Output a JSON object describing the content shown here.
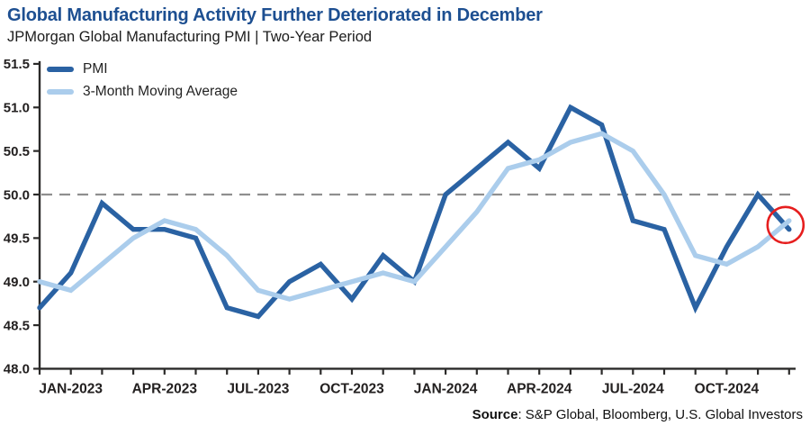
{
  "header": {
    "title": "Global Manufacturing Activity Further Deteriorated in December",
    "subtitle": "JPMorgan Global Manufacturing PMI | Two-Year Period"
  },
  "legend": {
    "position": "top-left",
    "items": [
      {
        "label": "PMI",
        "color": "#2a62a3"
      },
      {
        "label": "3-Month Moving Average",
        "color": "#abcdec"
      }
    ]
  },
  "footer": {
    "source_label": "Source",
    "source_text": ": S&P Global, Bloomberg, U.S. Global Investors"
  },
  "chart_data": {
    "type": "line",
    "title": "Global Manufacturing Activity Further Deteriorated in December",
    "subtitle": "JPMorgan Global Manufacturing PMI | Two-Year Period",
    "x": [
      "DEC-2022",
      "JAN-2023",
      "FEB-2023",
      "MAR-2023",
      "APR-2023",
      "MAY-2023",
      "JUN-2023",
      "JUL-2023",
      "AUG-2023",
      "SEP-2023",
      "OCT-2023",
      "NOV-2023",
      "DEC-2023",
      "JAN-2024",
      "FEB-2024",
      "MAR-2024",
      "APR-2024",
      "MAY-2024",
      "JUN-2024",
      "JUL-2024",
      "AUG-2024",
      "SEP-2024",
      "OCT-2024",
      "NOV-2024",
      "DEC-2024"
    ],
    "series": [
      {
        "name": "PMI",
        "color": "#2a62a3",
        "values": [
          48.7,
          49.1,
          49.9,
          49.6,
          49.6,
          49.5,
          48.7,
          48.6,
          49.0,
          49.2,
          48.8,
          49.3,
          49.0,
          50.0,
          50.3,
          50.6,
          50.3,
          51.0,
          50.8,
          49.7,
          49.6,
          48.7,
          49.4,
          50.0,
          49.6
        ]
      },
      {
        "name": "3-Month Moving Average",
        "color": "#abcdec",
        "values": [
          49.0,
          48.9,
          49.2,
          49.5,
          49.7,
          49.6,
          49.3,
          48.9,
          48.8,
          48.9,
          49.0,
          49.1,
          49.0,
          49.4,
          49.8,
          50.3,
          50.4,
          50.6,
          50.7,
          50.5,
          50.0,
          49.3,
          49.2,
          49.4,
          49.7
        ]
      }
    ],
    "ylim": [
      48.0,
      51.5
    ],
    "ytick_step": 0.5,
    "yticklabels": [
      "48.0",
      "48.5",
      "49.0",
      "49.5",
      "50.0",
      "50.5",
      "51.0",
      "51.5"
    ],
    "xticks": [
      {
        "index": 1,
        "label": "JAN-2023"
      },
      {
        "index": 4,
        "label": "APR-2023"
      },
      {
        "index": 7,
        "label": "JUL-2023"
      },
      {
        "index": 10,
        "label": "OCT-2023"
      },
      {
        "index": 13,
        "label": "JAN-2024"
      },
      {
        "index": 16,
        "label": "APR-2024"
      },
      {
        "index": 19,
        "label": "JUL-2024"
      },
      {
        "index": 22,
        "label": "OCT-2024"
      }
    ],
    "reference_line": {
      "value": 50.0,
      "style": "dashed",
      "color": "#8f8f8f"
    },
    "annotation": {
      "shape": "circle",
      "month": "DEC-2024",
      "pmi": 49.6,
      "moving_average": 49.7,
      "color": "#e61e1e"
    },
    "grid": false,
    "axis_color": "#2b2a29",
    "legend_position": "top-left"
  }
}
